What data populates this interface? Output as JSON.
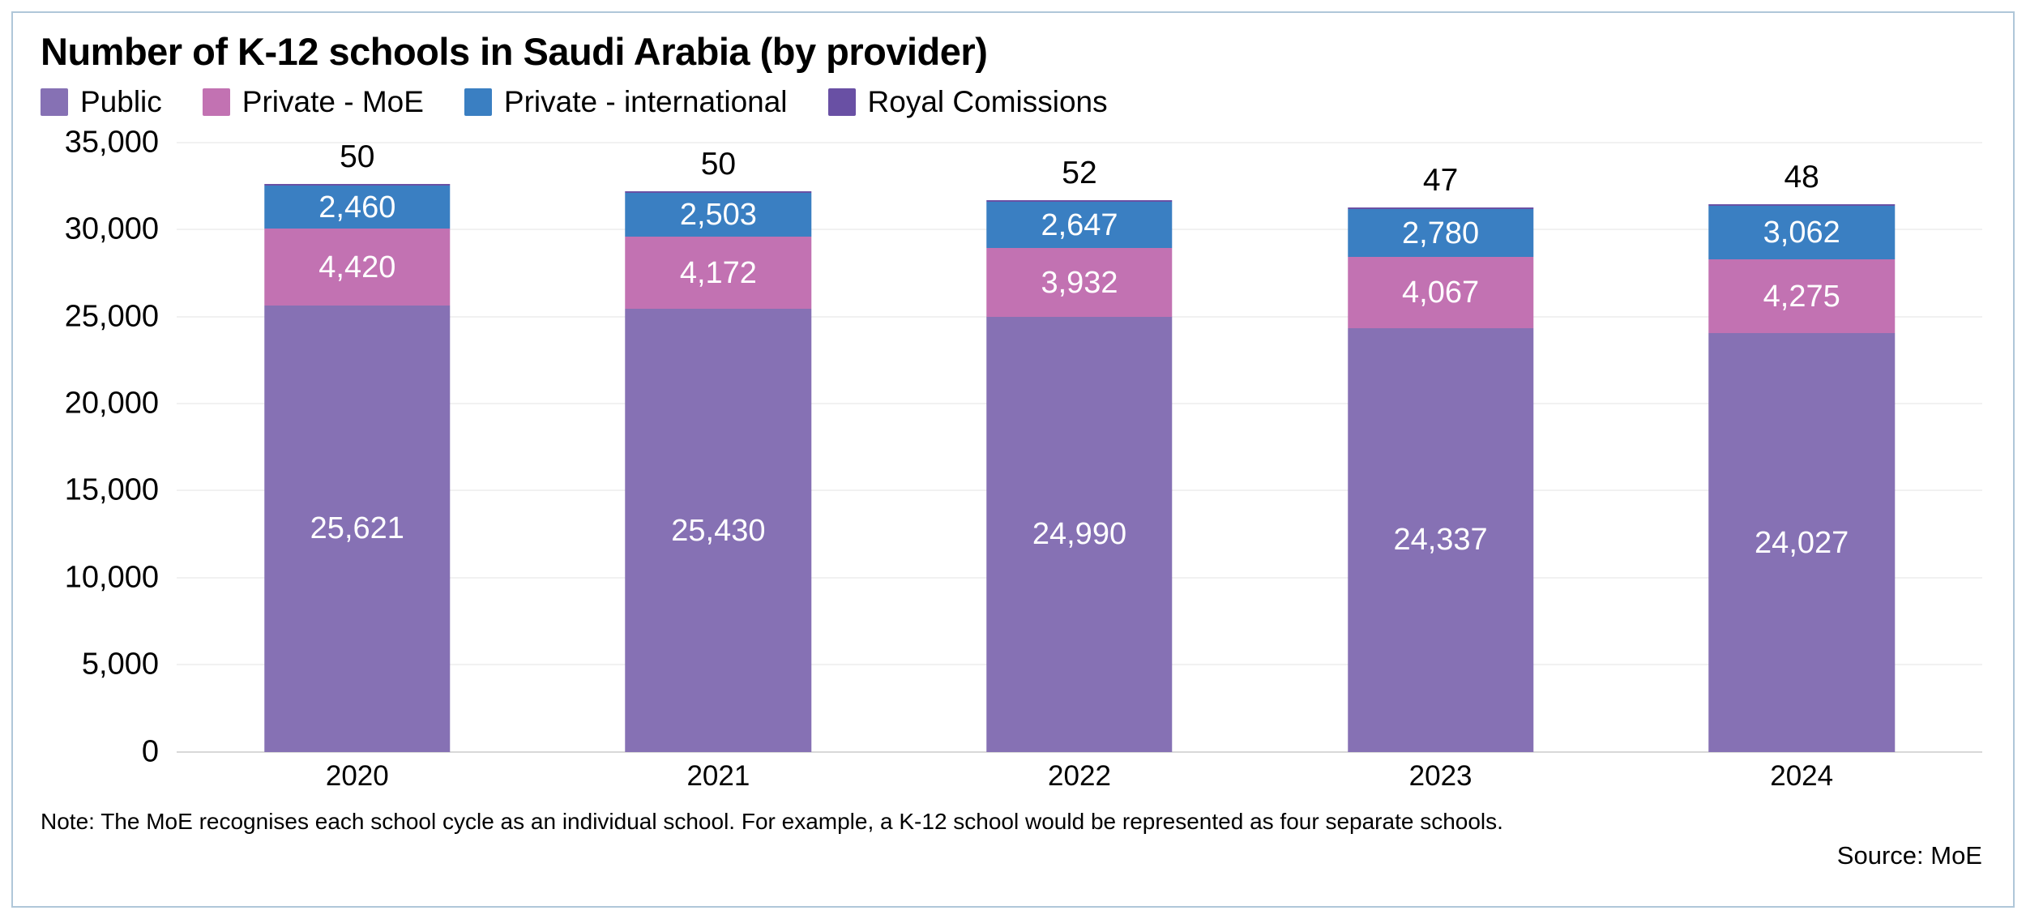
{
  "chart_data": {
    "type": "bar",
    "stacked": true,
    "title": "Number of K-12 schools in Saudi Arabia (by provider)",
    "categories": [
      "2020",
      "2021",
      "2022",
      "2023",
      "2024"
    ],
    "series": [
      {
        "name": "Public",
        "color": "#8671b4",
        "values": [
          25621,
          25430,
          24990,
          24337,
          24027
        ],
        "labels": [
          "25,621",
          "25,430",
          "24,990",
          "24,337",
          "24,027"
        ]
      },
      {
        "name": "Private - MoE",
        "color": "#c272b2",
        "values": [
          4420,
          4172,
          3932,
          4067,
          4275
        ],
        "labels": [
          "4,420",
          "4,172",
          "3,932",
          "4,067",
          "4,275"
        ]
      },
      {
        "name": "Private - international",
        "color": "#3a7fc2",
        "values": [
          2460,
          2503,
          2647,
          2780,
          3062
        ],
        "labels": [
          "2,460",
          "2,503",
          "2,647",
          "2,780",
          "3,062"
        ]
      },
      {
        "name": "Royal Comissions",
        "color": "#6950a4",
        "values": [
          50,
          50,
          52,
          47,
          48
        ],
        "labels": [
          "50",
          "50",
          "52",
          "47",
          "48"
        ]
      }
    ],
    "top_labels": [
      "50",
      "50",
      "52",
      "47",
      "48"
    ],
    "yticks": {
      "values": [
        0,
        5000,
        10000,
        15000,
        20000,
        25000,
        30000,
        35000
      ],
      "labels": [
        "0",
        "5,000",
        "10,000",
        "15,000",
        "20,000",
        "25,000",
        "30,000",
        "35,000"
      ]
    },
    "ylim": [
      0,
      35000
    ],
    "grid": true,
    "legend_position": "top",
    "xlabel": "",
    "ylabel": ""
  },
  "footer": {
    "note": "Note: The MoE recognises each school cycle as an individual school. For example, a K-12 school would be represented as four separate schools.",
    "source": "Source: MoE"
  },
  "colors": {
    "card_border": "#b0c7d9",
    "grid": "#f1f1f1",
    "baseline": "#d8d8d8",
    "segment_label_text": "#ffffff",
    "text": "#000000"
  }
}
